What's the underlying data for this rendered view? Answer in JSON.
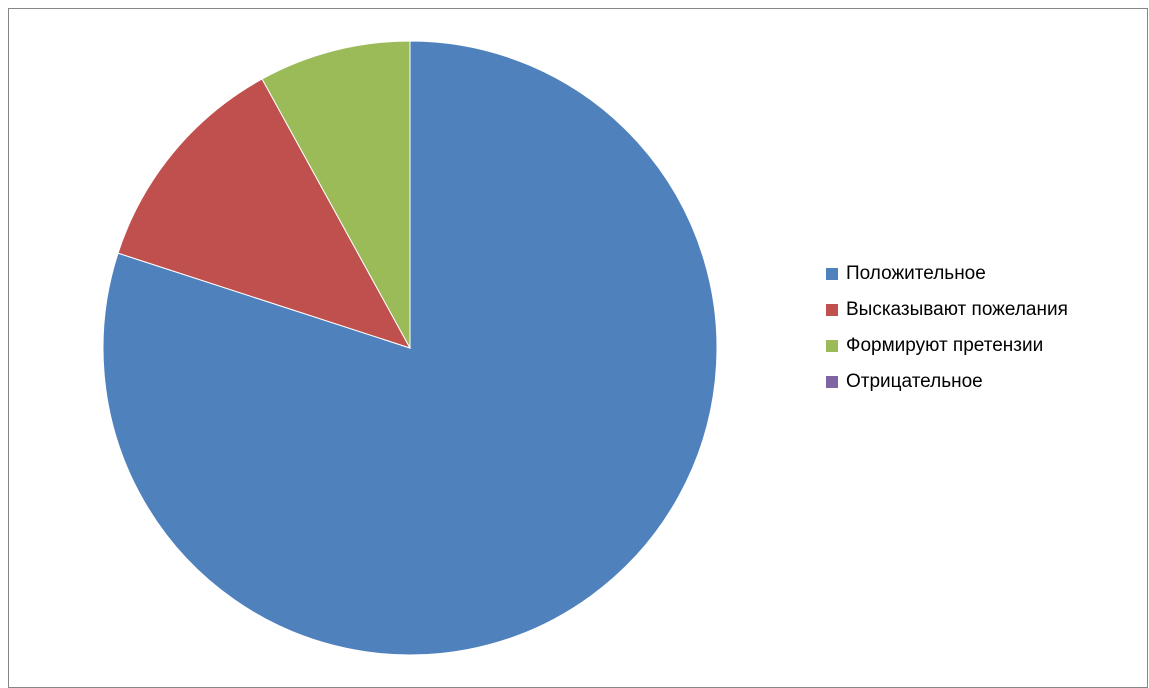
{
  "chart_data": {
    "type": "pie",
    "title": "",
    "categories": [
      "Положительное",
      "Высказывают пожелания",
      "Формируют претензии",
      "Отрицательное"
    ],
    "values": [
      80,
      12,
      8,
      0
    ],
    "colors": [
      "#4F81BD",
      "#C0504D",
      "#9BBB59",
      "#8064A2"
    ],
    "legend_position": "right"
  }
}
